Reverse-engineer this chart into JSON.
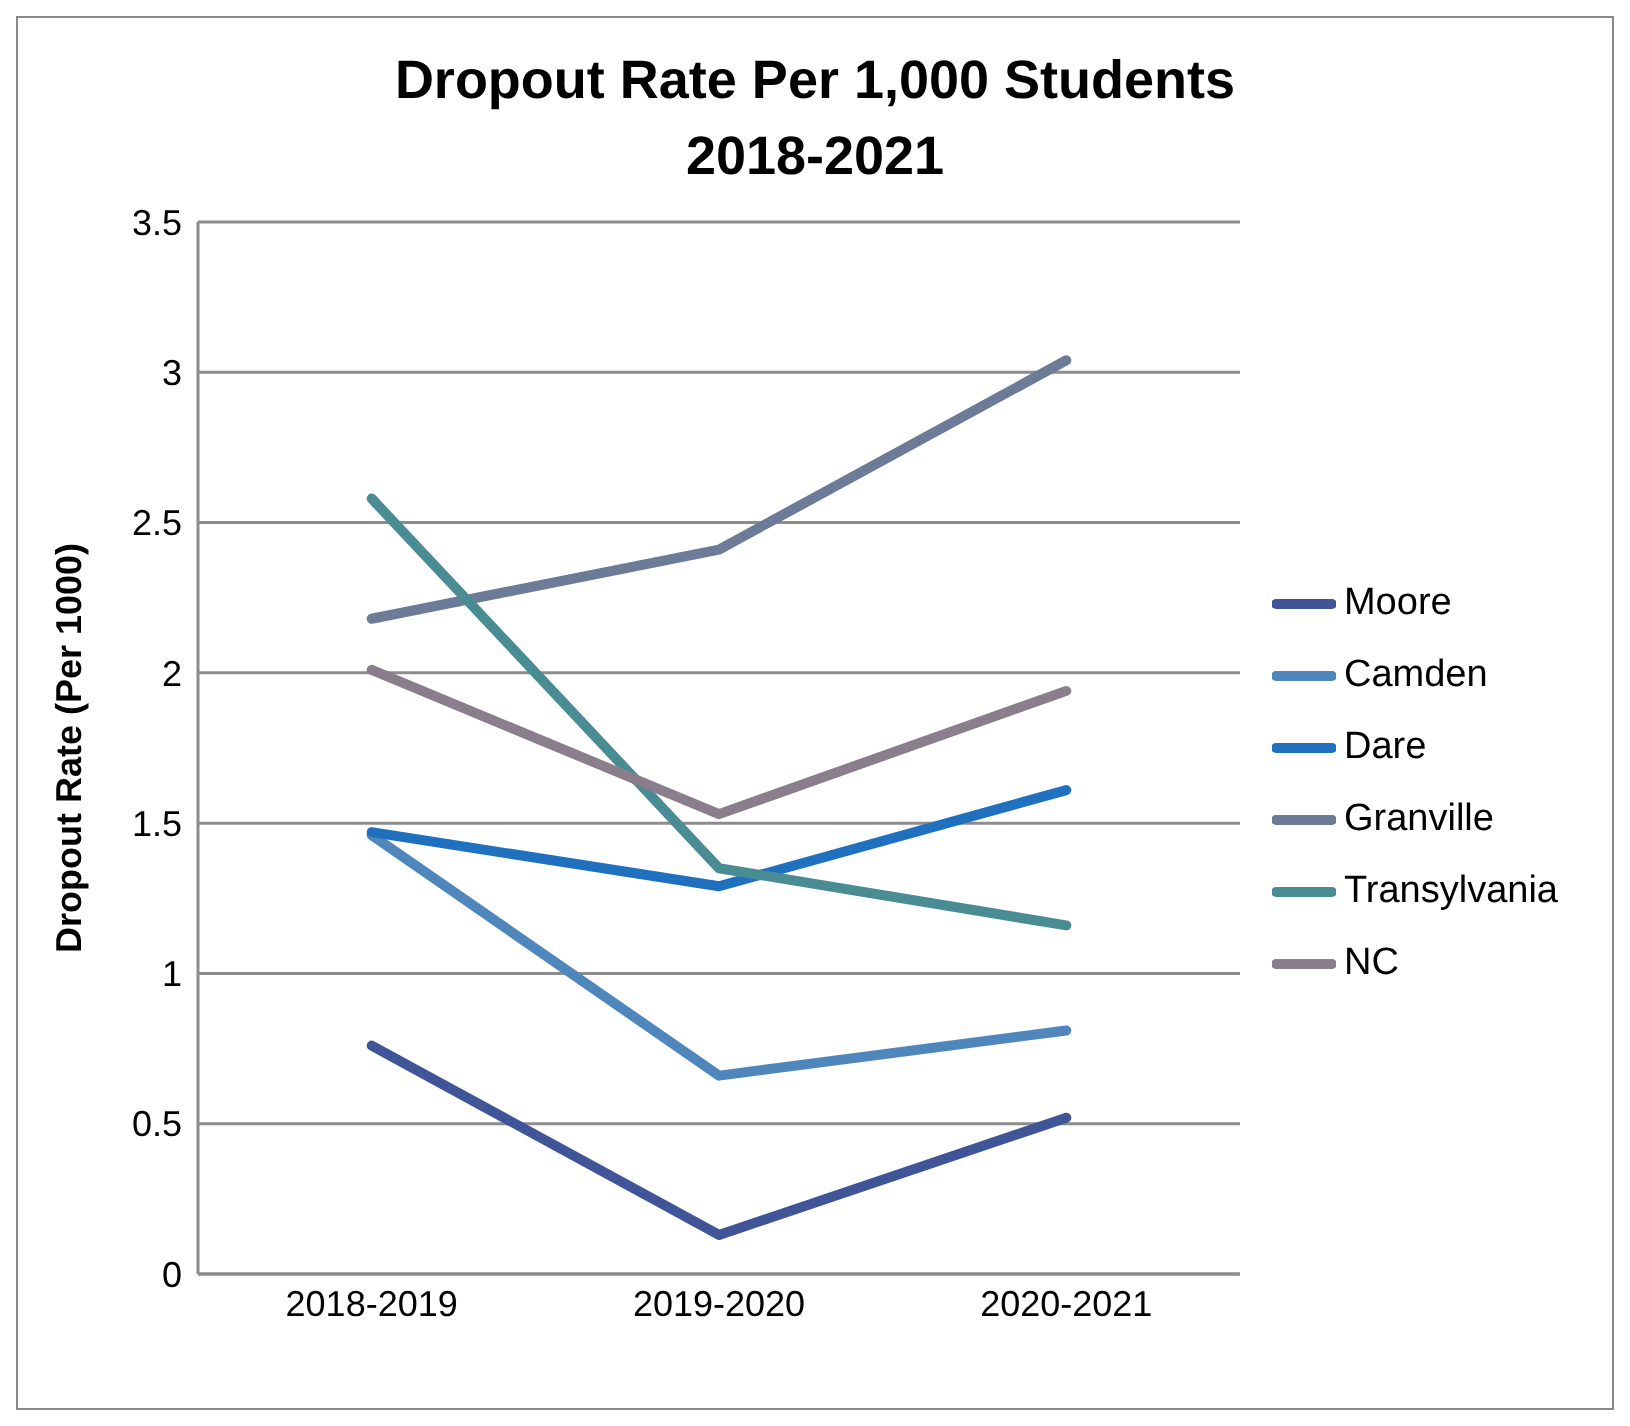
{
  "chart_data": {
    "type": "line",
    "title": "Dropout Rate Per 1,000 Students\n2018-2021",
    "ylabel": "Dropout Rate (Per 1000)",
    "categories": [
      "2018-2019",
      "2019-2020",
      "2020-2021"
    ],
    "series": [
      {
        "name": "Moore",
        "color": "#3f5597",
        "values": [
          0.76,
          0.13,
          0.52
        ]
      },
      {
        "name": "Camden",
        "color": "#4f87bd",
        "values": [
          1.46,
          0.66,
          0.81
        ]
      },
      {
        "name": "Dare",
        "color": "#2070c0",
        "values": [
          1.47,
          1.29,
          1.61
        ]
      },
      {
        "name": "Granville",
        "color": "#6b7b98",
        "values": [
          2.18,
          2.41,
          3.04
        ]
      },
      {
        "name": "Transylvania",
        "color": "#4a8c94",
        "values": [
          2.58,
          1.35,
          1.16
        ]
      },
      {
        "name": "NC",
        "color": "#8a7e8c",
        "values": [
          2.01,
          1.53,
          1.94
        ]
      }
    ],
    "ylim": [
      0,
      3.5
    ],
    "yticks": [
      0,
      0.5,
      1,
      1.5,
      2,
      2.5,
      3,
      3.5
    ],
    "grid": "y",
    "legend": "right",
    "marker": "none",
    "line_style": "solid"
  }
}
